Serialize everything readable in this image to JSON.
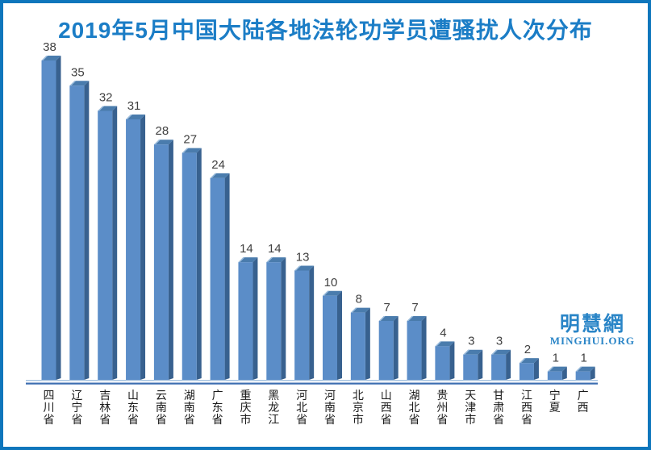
{
  "frame": {
    "border_color": "#0e76bc",
    "background": "#ffffff"
  },
  "title": {
    "text": "2019年5月中国大陆各地法轮功学员遭骚扰人次分布",
    "color": "#1b7dc6"
  },
  "watermark": {
    "cn": "明慧網",
    "en": "MINGHUI.ORG",
    "color": "#2a85c7"
  },
  "chart_data": {
    "type": "bar",
    "title": "2019年5月中国大陆各地法轮功学员遭骚扰人次分布",
    "categories": [
      "四川省",
      "辽宁省",
      "吉林省",
      "山东省",
      "云南省",
      "湖南省",
      "广东省",
      "重庆市",
      "黑龙江",
      "河北省",
      "河南省",
      "北京市",
      "山西省",
      "湖北省",
      "贵州省",
      "天津市",
      "甘肃省",
      "江西省",
      "宁夏",
      "广西"
    ],
    "values": [
      38,
      35,
      32,
      31,
      28,
      27,
      24,
      14,
      14,
      13,
      10,
      8,
      7,
      7,
      4,
      3,
      3,
      2,
      1,
      1
    ],
    "xlabel": "",
    "ylabel": "",
    "ylim": [
      0,
      40
    ],
    "grid": false,
    "legend": "none",
    "bar_style": "3d",
    "data_labels": true,
    "colors": {
      "bar_front": "#5b8dc8",
      "bar_side": "#38618f",
      "bar_top": "#4a7cad",
      "bar_top_highlight": "#9dbede",
      "axis_line_light": "#a8c4e0",
      "axis_line_dark": "#3c6db0",
      "value_label": "#404040",
      "category_label": "#1a1a1a"
    }
  }
}
